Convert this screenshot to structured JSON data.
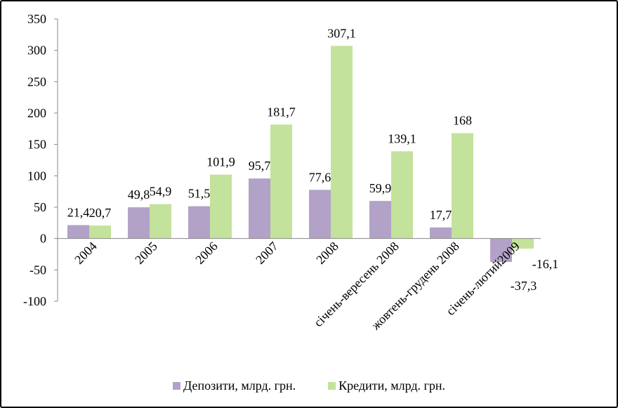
{
  "chart_data": {
    "type": "bar",
    "title": "",
    "xlabel": "",
    "ylabel": "",
    "ylim": [
      -100,
      350
    ],
    "yticks": [
      350,
      300,
      250,
      200,
      150,
      100,
      50,
      0,
      -50,
      -100
    ],
    "grid": false,
    "legend_position": "bottom",
    "categories": [
      "2004",
      "2005",
      "2006",
      "2007",
      "2008",
      "січень-вересень 2008",
      "жовтень-грудень 2008",
      "січень-лютий2009"
    ],
    "series": [
      {
        "name": "Депозити, млрд. грн.",
        "color": "#b3a2c7",
        "values": [
          21.4,
          49.8,
          51.5,
          95.7,
          77.6,
          59.9,
          17.7,
          -37.3
        ],
        "labels": [
          "21,4",
          "49,8",
          "51,5",
          "95,7",
          "77,6",
          "59,9",
          "17,7",
          "-37,3"
        ]
      },
      {
        "name": "Кредити, млрд. грн.",
        "color": "#c3e29b",
        "values": [
          20.7,
          54.9,
          101.9,
          181.7,
          307.1,
          139.1,
          168,
          -16.1
        ],
        "labels": [
          "20,7",
          "54,9",
          "101,9",
          "181,7",
          "307,1",
          "139,1",
          "168",
          "-16,1"
        ]
      }
    ]
  }
}
